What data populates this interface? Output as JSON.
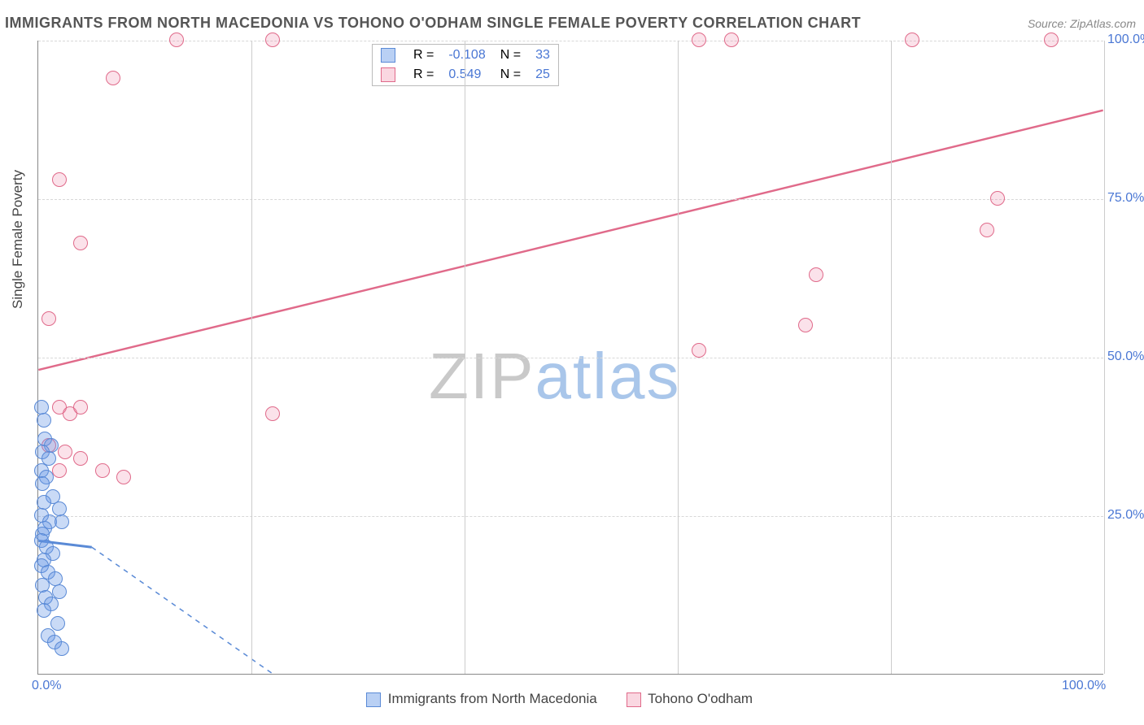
{
  "title": "IMMIGRANTS FROM NORTH MACEDONIA VS TOHONO O'ODHAM SINGLE FEMALE POVERTY CORRELATION CHART",
  "source_label": "Source:",
  "source_name": "ZipAtlas.com",
  "y_axis_label": "Single Female Poverty",
  "watermark_a": "ZIP",
  "watermark_b": "atlas",
  "chart": {
    "type": "scatter-with-trend",
    "xlim": [
      0,
      100
    ],
    "ylim": [
      0,
      100
    ],
    "y_ticks": [
      25,
      50,
      75,
      100
    ],
    "y_tick_labels": [
      "25.0%",
      "50.0%",
      "75.0%",
      "100.0%"
    ],
    "x_ticks": [
      0,
      100
    ],
    "x_tick_labels": [
      "0.0%",
      "100.0%"
    ],
    "x_gridlines": [
      20,
      40,
      60,
      80,
      100
    ],
    "background_color": "#ffffff",
    "grid_color": "#d8d8d8",
    "axis_color": "#888888",
    "marker_radius": 9,
    "series": {
      "blue": {
        "label": "Immigrants from North Macedonia",
        "color_fill": "#6496e659",
        "color_stroke": "#5a8ad6",
        "R": "-0.108",
        "N": "33",
        "trend": {
          "x1": 0,
          "y1": 21,
          "x2": 5,
          "y2": 20,
          "dash_to_x": 22,
          "dash_to_y": 0,
          "stroke_width": 3
        },
        "points": [
          [
            0.3,
            42
          ],
          [
            0.5,
            40
          ],
          [
            0.6,
            37
          ],
          [
            1.2,
            36
          ],
          [
            0.4,
            35
          ],
          [
            1.0,
            34
          ],
          [
            0.3,
            32
          ],
          [
            0.8,
            31
          ],
          [
            0.4,
            30
          ],
          [
            1.4,
            28
          ],
          [
            2.0,
            26
          ],
          [
            0.5,
            27
          ],
          [
            0.3,
            25
          ],
          [
            1.1,
            24
          ],
          [
            2.2,
            24
          ],
          [
            0.6,
            23
          ],
          [
            0.4,
            22
          ],
          [
            0.3,
            21
          ],
          [
            0.8,
            20
          ],
          [
            1.4,
            19
          ],
          [
            0.5,
            18
          ],
          [
            0.3,
            17
          ],
          [
            0.9,
            16
          ],
          [
            1.6,
            15
          ],
          [
            0.4,
            14
          ],
          [
            2.0,
            13
          ],
          [
            0.7,
            12
          ],
          [
            1.2,
            11
          ],
          [
            0.5,
            10
          ],
          [
            1.8,
            8
          ],
          [
            0.9,
            6
          ],
          [
            1.5,
            5
          ],
          [
            2.2,
            4
          ]
        ]
      },
      "pink": {
        "label": "Tohono O'odham",
        "color_fill": "#f08caa40",
        "color_stroke": "#e06a8a",
        "R": "0.549",
        "N": "25",
        "trend": {
          "x1": 0,
          "y1": 48,
          "x2": 100,
          "y2": 89,
          "stroke_width": 2.5
        },
        "points": [
          [
            13,
            100
          ],
          [
            22,
            100
          ],
          [
            62,
            100
          ],
          [
            65,
            100
          ],
          [
            82,
            100
          ],
          [
            95,
            100
          ],
          [
            7,
            94
          ],
          [
            2,
            78
          ],
          [
            90,
            75
          ],
          [
            4,
            68
          ],
          [
            89,
            70
          ],
          [
            73,
            63
          ],
          [
            1,
            56
          ],
          [
            72,
            55
          ],
          [
            62,
            51
          ],
          [
            22,
            41
          ],
          [
            2,
            42
          ],
          [
            3,
            41
          ],
          [
            4,
            42
          ],
          [
            1,
            36
          ],
          [
            2.5,
            35
          ],
          [
            4,
            34
          ],
          [
            6,
            32
          ],
          [
            2,
            32
          ],
          [
            8,
            31
          ]
        ]
      }
    }
  },
  "legend_top": {
    "r_label": "R =",
    "n_label": "N =",
    "value_color": "#4a77d4"
  },
  "legend_bottom_items": [
    {
      "swatch": "blue",
      "label_path": "chart.series.blue.label"
    },
    {
      "swatch": "pink",
      "label_path": "chart.series.pink.label"
    }
  ]
}
